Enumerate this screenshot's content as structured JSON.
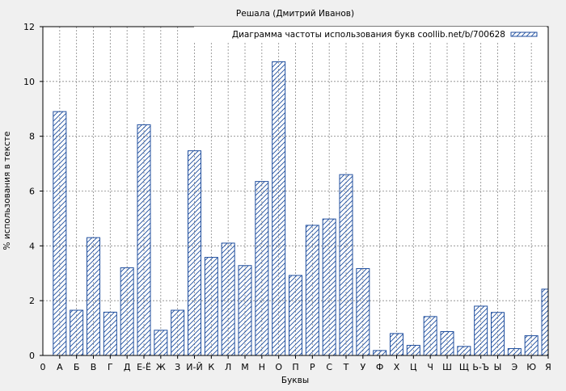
{
  "chart_data": {
    "type": "bar",
    "title": "Решала (Дмитрий Иванов)",
    "xlabel": "Буквы",
    "ylabel": "% использования в тексте",
    "x_origin_label": "0",
    "categories": [
      "А",
      "Б",
      "В",
      "Г",
      "Д",
      "Е-Ё",
      "Ж",
      "З",
      "И-Й",
      "К",
      "Л",
      "М",
      "Н",
      "О",
      "П",
      "Р",
      "С",
      "Т",
      "У",
      "Ф",
      "Х",
      "Ц",
      "Ч",
      "Ш",
      "Щ",
      "Ь-Ъ",
      "Ы",
      "Э",
      "Ю",
      "Я"
    ],
    "series": [
      {
        "name": "Диаграмма частоты использования букв coollib.net/b/700628",
        "values": [
          8.9,
          1.65,
          4.3,
          1.58,
          3.2,
          8.42,
          0.92,
          1.65,
          7.47,
          3.58,
          4.1,
          3.28,
          6.35,
          10.72,
          2.92,
          4.75,
          4.98,
          6.6,
          3.17,
          0.18,
          0.8,
          0.37,
          1.42,
          0.87,
          0.33,
          1.8,
          1.57,
          0.25,
          0.72,
          2.42
        ]
      }
    ],
    "ylim": [
      0,
      12
    ],
    "yticks": [
      0,
      2,
      4,
      6,
      8,
      10,
      12
    ],
    "grid": true,
    "legend_position": "top-right",
    "colors": {
      "bar_edge": "#1f4e9e",
      "hatch": "#1f4e9e",
      "grid": "#888888",
      "background": "#f0f0f0",
      "plot_background": "#ffffff"
    }
  }
}
